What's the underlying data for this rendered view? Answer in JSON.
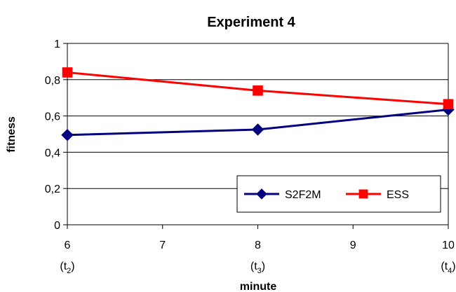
{
  "chart_data": {
    "type": "line",
    "title": "Experiment 4",
    "xlabel": "minute",
    "ylabel": "fitness",
    "xlim": [
      6,
      10
    ],
    "ylim": [
      0,
      1
    ],
    "x_ticks": [
      {
        "value": 6,
        "label": "6",
        "sub": "(t",
        "sub_index": "2",
        "sub_close": ")"
      },
      {
        "value": 7,
        "label": "7"
      },
      {
        "value": 8,
        "label": "8",
        "sub": "(t",
        "sub_index": "3",
        "sub_close": ")"
      },
      {
        "value": 9,
        "label": "9"
      },
      {
        "value": 10,
        "label": "10",
        "sub": "(t",
        "sub_index": "4",
        "sub_close": ")"
      }
    ],
    "y_ticks": [
      {
        "value": 0,
        "label": "0"
      },
      {
        "value": 0.2,
        "label": "0,2"
      },
      {
        "value": 0.4,
        "label": "0,4"
      },
      {
        "value": 0.6,
        "label": "0,6"
      },
      {
        "value": 0.8,
        "label": "0,8"
      },
      {
        "value": 1,
        "label": "1"
      }
    ],
    "grid": true,
    "legend_position": "bottom-right",
    "series": [
      {
        "name": "S2F2M",
        "color": "#000080",
        "marker": "diamond",
        "x": [
          6,
          8,
          10
        ],
        "values": [
          0.495,
          0.525,
          0.635
        ]
      },
      {
        "name": "ESS",
        "color": "#ff0000",
        "marker": "square",
        "x": [
          6,
          8,
          10
        ],
        "values": [
          0.84,
          0.74,
          0.665
        ]
      }
    ]
  }
}
